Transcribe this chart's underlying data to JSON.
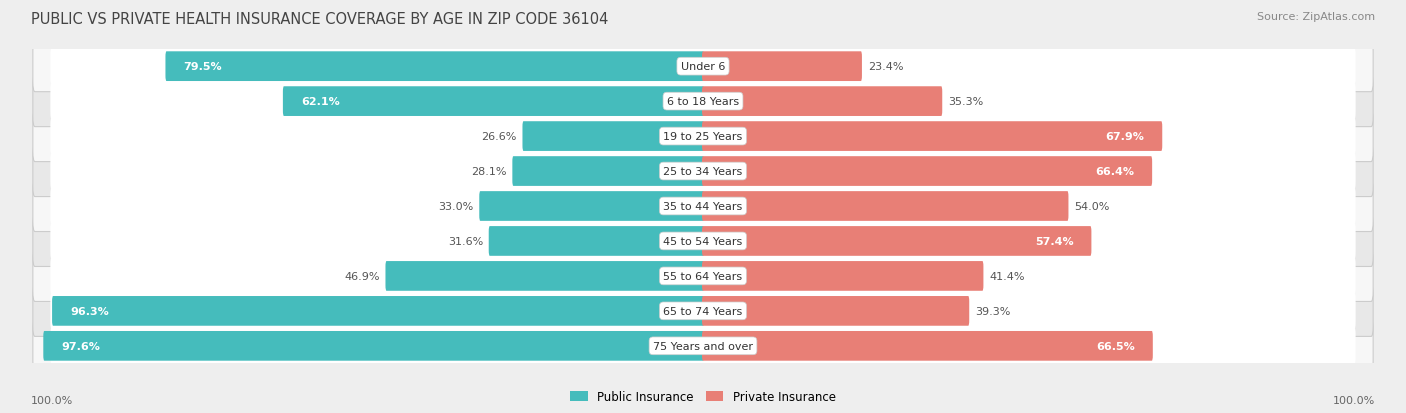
{
  "title": "PUBLIC VS PRIVATE HEALTH INSURANCE COVERAGE BY AGE IN ZIP CODE 36104",
  "source": "Source: ZipAtlas.com",
  "categories": [
    "Under 6",
    "6 to 18 Years",
    "19 to 25 Years",
    "25 to 34 Years",
    "35 to 44 Years",
    "45 to 54 Years",
    "55 to 64 Years",
    "65 to 74 Years",
    "75 Years and over"
  ],
  "public_values": [
    79.5,
    62.1,
    26.6,
    28.1,
    33.0,
    31.6,
    46.9,
    96.3,
    97.6
  ],
  "private_values": [
    23.4,
    35.3,
    67.9,
    66.4,
    54.0,
    57.4,
    41.4,
    39.3,
    66.5
  ],
  "public_color": "#45BCBC",
  "private_color": "#E87F76",
  "public_label": "Public Insurance",
  "private_label": "Private Insurance",
  "bg_color": "#EEEEEE",
  "row_light_color": "#F7F7F7",
  "row_dark_color": "#E8E8E8",
  "bar_bg_color": "#FFFFFF",
  "max_value": 100.0,
  "x_left_label": "100.0%",
  "x_right_label": "100.0%",
  "title_fontsize": 10.5,
  "source_fontsize": 8,
  "label_fontsize": 8,
  "value_fontsize": 8
}
